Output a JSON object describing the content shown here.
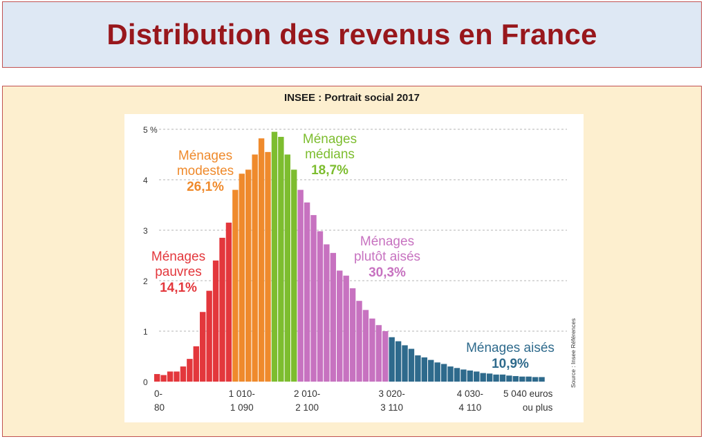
{
  "title": "Distribution des revenus en France",
  "subtitle": "INSEE : Portrait social 2017",
  "colors": {
    "title": "#98171c",
    "pauvres": "#e3373c",
    "modestes": "#ef8a2c",
    "medians": "#7dbd2f",
    "plutot_aises": "#c772c0",
    "aises": "#2e6a8c"
  },
  "chart_data": {
    "type": "bar",
    "title": "",
    "xlabel": "",
    "ylabel": "",
    "ylim": [
      0,
      5
    ],
    "y_ticks": [
      "0",
      "1",
      "2",
      "3",
      "4",
      "5 %"
    ],
    "grid": true,
    "x_tick_labels": [
      {
        "line1": "0-",
        "line2": "80",
        "index": 0
      },
      {
        "line1": "1 010-",
        "line2": "1 090",
        "index": 13
      },
      {
        "line1": "2 010-",
        "line2": "2 100",
        "index": 23
      },
      {
        "line1": "3 020-",
        "line2": "3 110",
        "index": 36
      },
      {
        "line1": "4 030-",
        "line2": "4 110",
        "index": 48
      },
      {
        "line1": "5 040 euros",
        "line2": "ou plus",
        "index": 59
      }
    ],
    "values": [
      0.15,
      0.13,
      0.2,
      0.2,
      0.3,
      0.45,
      0.7,
      1.38,
      1.8,
      2.4,
      2.85,
      3.15,
      3.8,
      4.12,
      4.2,
      4.5,
      4.82,
      4.55,
      4.95,
      4.85,
      4.5,
      4.2,
      3.8,
      3.55,
      3.3,
      2.98,
      2.72,
      2.55,
      2.2,
      2.1,
      1.85,
      1.6,
      1.42,
      1.25,
      1.12,
      1.0,
      0.88,
      0.8,
      0.72,
      0.65,
      0.52,
      0.48,
      0.43,
      0.38,
      0.35,
      0.3,
      0.27,
      0.24,
      0.22,
      0.2,
      0.17,
      0.16,
      0.14,
      0.14,
      0.12,
      0.11,
      0.1,
      0.1,
      0.09,
      0.09
    ],
    "groups": [
      {
        "name": "Ménages pauvres",
        "share": "14,1%",
        "label_line1": "Ménages",
        "label_line2": "pauvres",
        "start": 0,
        "end": 11,
        "color": "#e3373c"
      },
      {
        "name": "Ménages modestes",
        "share": "26,1%",
        "label_line1": "Ménages",
        "label_line2": "modestes",
        "start": 12,
        "end": 17,
        "color": "#ef8a2c"
      },
      {
        "name": "Ménages médians",
        "share": "18,7%",
        "label_line1": "Ménages",
        "label_line2": "médians",
        "start": 18,
        "end": 21,
        "color": "#7dbd2f"
      },
      {
        "name": "Ménages plutôt aisés",
        "share": "30,3%",
        "label_line1": "Ménages",
        "label_line2": "plutôt aisés",
        "start": 22,
        "end": 35,
        "color": "#c772c0"
      },
      {
        "name": "Ménages aisés",
        "share": "10,9%",
        "label_line1": "Ménages aisés",
        "label_line2": "",
        "start": 36,
        "end": 59,
        "color": "#2e6a8c"
      }
    ],
    "source": "Source : Insee Références"
  }
}
